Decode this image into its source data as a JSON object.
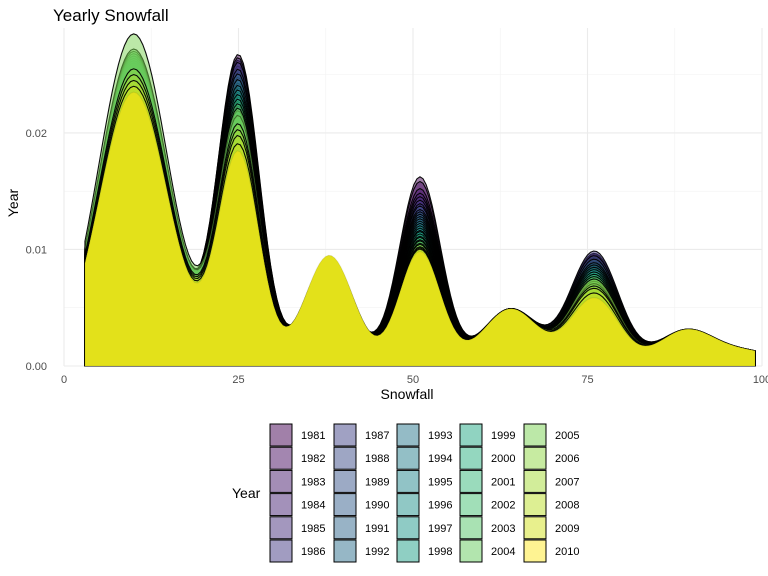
{
  "chart_data": {
    "type": "area",
    "subtype": "overlapping density",
    "title": "Yearly Snowfall",
    "xlabel": "Snowfall",
    "ylabel": "Year",
    "xlim": [
      0,
      100
    ],
    "ylim": [
      0,
      0.029
    ],
    "x_ticks": [
      0,
      25,
      50,
      75,
      100
    ],
    "x_tick_labels": [
      "0",
      "25",
      "50",
      "75",
      "100"
    ],
    "y_ticks": [
      0,
      0.01,
      0.02
    ],
    "y_tick_labels": [
      "0.00",
      "0.01",
      "0.02"
    ],
    "grid": true,
    "legend_title": "Year",
    "legend_position": "bottom",
    "palette": "viridis",
    "x_range_data": [
      3,
      99
    ],
    "density_components": [
      {
        "center": 10,
        "sd": 5
      },
      {
        "center": 25,
        "sd": 3
      },
      {
        "center": 38,
        "sd": 3.5
      },
      {
        "center": 51,
        "sd": 3
      },
      {
        "center": 64,
        "sd": 4
      },
      {
        "center": 76,
        "sd": 3.5
      },
      {
        "center": 89,
        "sd": 4
      },
      {
        "center": 98,
        "sd": 5
      }
    ],
    "series": [
      {
        "name": "1981",
        "color": "#440154",
        "weights": [
          0.0205,
          0.0265,
          0.008,
          0.0162,
          0.0047,
          0.0095,
          0.0028,
          0.0012
        ]
      },
      {
        "name": "1982",
        "color": "#470E61",
        "weights": [
          0.0215,
          0.026,
          0.0078,
          0.0158,
          0.0048,
          0.0093,
          0.0028,
          0.0012
        ]
      },
      {
        "name": "1983",
        "color": "#481B6D",
        "weights": [
          0.022,
          0.0255,
          0.0082,
          0.0152,
          0.0047,
          0.0096,
          0.0029,
          0.0011
        ]
      },
      {
        "name": "1984",
        "color": "#482475",
        "weights": [
          0.0225,
          0.025,
          0.008,
          0.0148,
          0.0049,
          0.0092,
          0.0027,
          0.0012
        ]
      },
      {
        "name": "1985",
        "color": "#472F7D",
        "weights": [
          0.023,
          0.0262,
          0.0081,
          0.0145,
          0.0046,
          0.009,
          0.0028,
          0.0012
        ]
      },
      {
        "name": "1986",
        "color": "#443A83",
        "weights": [
          0.0232,
          0.0248,
          0.0079,
          0.0142,
          0.0048,
          0.0098,
          0.0029,
          0.0012
        ]
      },
      {
        "name": "1987",
        "color": "#414487",
        "weights": [
          0.0235,
          0.0258,
          0.0082,
          0.0139,
          0.0047,
          0.0089,
          0.0028,
          0.0011
        ]
      },
      {
        "name": "1988",
        "color": "#3D4D8A",
        "weights": [
          0.0238,
          0.0245,
          0.008,
          0.0137,
          0.0049,
          0.0094,
          0.0028,
          0.0012
        ]
      },
      {
        "name": "1989",
        "color": "#39568C",
        "weights": [
          0.024,
          0.0252,
          0.0081,
          0.0134,
          0.0048,
          0.0087,
          0.0027,
          0.0012
        ]
      },
      {
        "name": "1990",
        "color": "#355F8D",
        "weights": [
          0.0242,
          0.024,
          0.0083,
          0.0132,
          0.0047,
          0.0091,
          0.0029,
          0.0012
        ]
      },
      {
        "name": "1991",
        "color": "#31688E",
        "weights": [
          0.0245,
          0.0248,
          0.008,
          0.013,
          0.0048,
          0.0085,
          0.0028,
          0.0011
        ]
      },
      {
        "name": "1992",
        "color": "#2D708E",
        "weights": [
          0.0247,
          0.0236,
          0.0082,
          0.0128,
          0.0049,
          0.0088,
          0.0028,
          0.0012
        ]
      },
      {
        "name": "1993",
        "color": "#2A788E",
        "weights": [
          0.025,
          0.0243,
          0.0081,
          0.0126,
          0.0047,
          0.0083,
          0.0027,
          0.0012
        ]
      },
      {
        "name": "1994",
        "color": "#27808E",
        "weights": [
          0.0252,
          0.0232,
          0.008,
          0.0124,
          0.0048,
          0.0086,
          0.0028,
          0.0012
        ]
      },
      {
        "name": "1995",
        "color": "#23888E",
        "weights": [
          0.0254,
          0.0238,
          0.0082,
          0.0122,
          0.0049,
          0.008,
          0.0029,
          0.0011
        ]
      },
      {
        "name": "1996",
        "color": "#21918C",
        "weights": [
          0.0256,
          0.0228,
          0.0081,
          0.012,
          0.0047,
          0.0084,
          0.0028,
          0.0012
        ]
      },
      {
        "name": "1997",
        "color": "#1F988B",
        "weights": [
          0.0258,
          0.0234,
          0.008,
          0.0118,
          0.0048,
          0.0078,
          0.0027,
          0.0012
        ]
      },
      {
        "name": "1998",
        "color": "#1FA088",
        "weights": [
          0.026,
          0.0224,
          0.0082,
          0.0116,
          0.0049,
          0.0082,
          0.0028,
          0.0012
        ]
      },
      {
        "name": "1999",
        "color": "#22A884",
        "weights": [
          0.0262,
          0.023,
          0.0081,
          0.0115,
          0.0047,
          0.0076,
          0.0028,
          0.0011
        ]
      },
      {
        "name": "2000",
        "color": "#2AB07F",
        "weights": [
          0.0264,
          0.022,
          0.008,
          0.0113,
          0.0048,
          0.008,
          0.0029,
          0.0012
        ]
      },
      {
        "name": "2001",
        "color": "#35B779",
        "weights": [
          0.0266,
          0.0226,
          0.0082,
          0.0111,
          0.0049,
          0.0074,
          0.0028,
          0.0012
        ]
      },
      {
        "name": "2002",
        "color": "#43BF71",
        "weights": [
          0.0268,
          0.0216,
          0.0081,
          0.011,
          0.0047,
          0.0078,
          0.0027,
          0.0012
        ]
      },
      {
        "name": "2003",
        "color": "#54C568",
        "weights": [
          0.027,
          0.0222,
          0.008,
          0.0108,
          0.0048,
          0.0072,
          0.0028,
          0.0012
        ]
      },
      {
        "name": "2004",
        "color": "#66CB5D",
        "weights": [
          0.0272,
          0.0212,
          0.0082,
          0.0107,
          0.0049,
          0.0076,
          0.0028,
          0.0011
        ]
      },
      {
        "name": "2005",
        "color": "#7AD151",
        "weights": [
          0.0285,
          0.0218,
          0.0081,
          0.0105,
          0.0047,
          0.007,
          0.0029,
          0.0012
        ]
      },
      {
        "name": "2006",
        "color": "#8FD744",
        "weights": [
          0.0255,
          0.0205,
          0.008,
          0.0104,
          0.0048,
          0.0074,
          0.0028,
          0.0012
        ]
      },
      {
        "name": "2007",
        "color": "#A5DB36",
        "weights": [
          0.025,
          0.02,
          0.0086,
          0.0102,
          0.0049,
          0.0068,
          0.0027,
          0.0012
        ]
      },
      {
        "name": "2008",
        "color": "#BBDF27",
        "weights": [
          0.0245,
          0.0195,
          0.0088,
          0.0101,
          0.0047,
          0.0066,
          0.0028,
          0.0012
        ]
      },
      {
        "name": "2009",
        "color": "#D2E21B",
        "weights": [
          0.024,
          0.0188,
          0.0093,
          0.01,
          0.0048,
          0.0062,
          0.0028,
          0.0011
        ]
      },
      {
        "name": "2010",
        "color": "#FDE725",
        "weights": [
          0.0235,
          0.0182,
          0.0095,
          0.0098,
          0.0049,
          0.0058,
          0.0029,
          0.0012
        ]
      }
    ]
  }
}
